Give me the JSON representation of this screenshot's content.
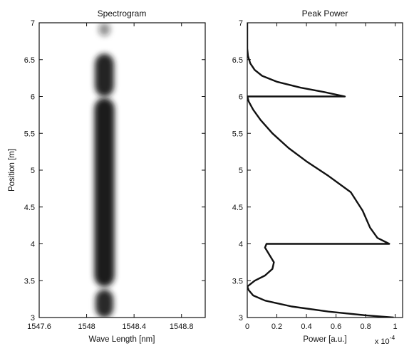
{
  "chart_data": [
    {
      "type": "heatmap",
      "title": "Spectrogram",
      "xlabel": "Wave Length [nm]",
      "ylabel": "Position [m]",
      "xlim": [
        1547.6,
        1549.0
      ],
      "ylim": [
        3,
        7
      ],
      "xticks": [
        "1547.6",
        "1548",
        "1548.4",
        "1548.8"
      ],
      "xtick_values": [
        1547.6,
        1548.0,
        1548.4,
        1548.8
      ],
      "yticks": [
        "3",
        "3.5",
        "4",
        "4.5",
        "5",
        "5.5",
        "6",
        "6.5",
        "7"
      ],
      "ytick_values": [
        3,
        3.5,
        4,
        4.5,
        5,
        5.5,
        6,
        6.5,
        7
      ],
      "grid": false,
      "color": "#1a1a1a",
      "blobs": [
        {
          "center_nm": 1548.15,
          "halfwidth_nm": 0.075,
          "y_from": 3.0,
          "y_to": 3.38,
          "intensity": 0.95
        },
        {
          "center_nm": 1548.15,
          "halfwidth_nm": 0.085,
          "y_from": 3.42,
          "y_to": 5.98,
          "intensity": 1.0
        },
        {
          "center_nm": 1548.15,
          "halfwidth_nm": 0.08,
          "y_from": 6.0,
          "y_to": 6.58,
          "intensity": 0.97
        },
        {
          "center_nm": 1548.15,
          "halfwidth_nm": 0.05,
          "y_from": 6.82,
          "y_to": 7.0,
          "intensity": 0.45
        }
      ]
    },
    {
      "type": "line",
      "title": "Peak Power",
      "xlabel": "Power [a.u.]",
      "x_multiplier_label": "x 10",
      "x_multiplier_exponent": "-4",
      "xlim": [
        0,
        1.05
      ],
      "ylim": [
        3,
        7
      ],
      "xticks": [
        "0",
        "0.2",
        "0.4",
        "0.6",
        "0.8",
        "1"
      ],
      "xtick_values": [
        0,
        0.2,
        0.4,
        0.6,
        0.8,
        1.0
      ],
      "yticks": [
        "3",
        "3.5",
        "4",
        "4.5",
        "5",
        "5.5",
        "6",
        "6.5",
        "7"
      ],
      "ytick_values": [
        3,
        3.5,
        4,
        4.5,
        5,
        5.5,
        6,
        6.5,
        7
      ],
      "grid": false,
      "series": [
        {
          "color": "#111111",
          "points": [
            [
              0.99,
              3.0
            ],
            [
              0.8,
              3.03
            ],
            [
              0.55,
              3.08
            ],
            [
              0.3,
              3.15
            ],
            [
              0.12,
              3.23
            ],
            [
              0.04,
              3.3
            ],
            [
              0.01,
              3.37
            ],
            [
              0.0,
              3.42
            ],
            [
              0.05,
              3.5
            ],
            [
              0.12,
              3.57
            ],
            [
              0.17,
              3.66
            ],
            [
              0.18,
              3.75
            ],
            [
              0.15,
              3.85
            ],
            [
              0.12,
              3.95
            ],
            [
              0.13,
              4.0
            ],
            [
              0.96,
              4.0
            ],
            [
              0.88,
              4.08
            ],
            [
              0.83,
              4.22
            ],
            [
              0.78,
              4.45
            ],
            [
              0.7,
              4.7
            ],
            [
              0.55,
              4.92
            ],
            [
              0.4,
              5.12
            ],
            [
              0.28,
              5.3
            ],
            [
              0.17,
              5.5
            ],
            [
              0.09,
              5.68
            ],
            [
              0.04,
              5.82
            ],
            [
              0.01,
              5.93
            ],
            [
              0.0,
              6.0
            ],
            [
              0.66,
              6.0
            ],
            [
              0.52,
              6.06
            ],
            [
              0.36,
              6.12
            ],
            [
              0.2,
              6.2
            ],
            [
              0.1,
              6.28
            ],
            [
              0.05,
              6.36
            ],
            [
              0.02,
              6.45
            ],
            [
              0.005,
              6.55
            ],
            [
              0.0,
              6.65
            ],
            [
              0.0,
              7.0
            ]
          ]
        }
      ]
    }
  ]
}
